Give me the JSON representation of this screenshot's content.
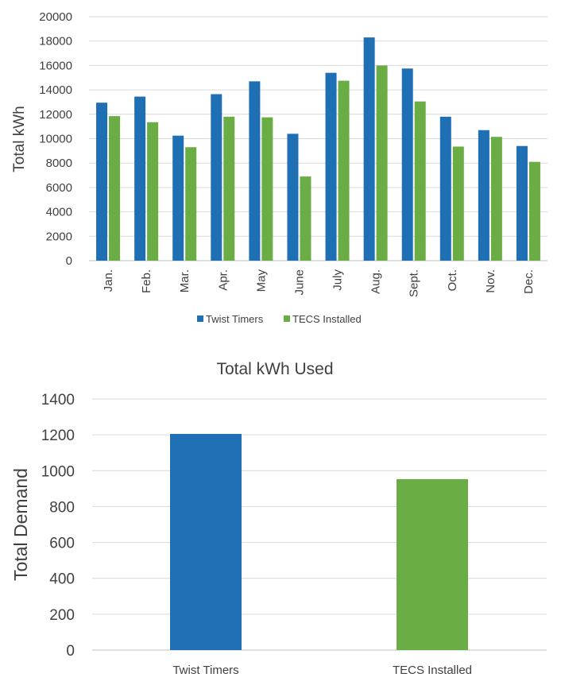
{
  "chart_data": [
    {
      "type": "bar",
      "title": "",
      "xlabel": "",
      "ylabel": "Total kWh",
      "ylim": [
        0,
        20000
      ],
      "yticks": [
        0,
        2000,
        4000,
        6000,
        8000,
        10000,
        12000,
        14000,
        16000,
        18000,
        20000
      ],
      "grid": true,
      "legend_position": "bottom",
      "categories": [
        "Jan.",
        "Feb.",
        "Mar.",
        "Apr.",
        "May",
        "June",
        "July",
        "Aug.",
        "Sept.",
        "Oct.",
        "Nov.",
        "Dec."
      ],
      "series": [
        {
          "name": "Twist Timers",
          "color": "#1f6fb5",
          "values": [
            12950,
            13450,
            10250,
            13650,
            14700,
            10400,
            15400,
            18300,
            15750,
            11800,
            10700,
            9400
          ]
        },
        {
          "name": "TECS Installed",
          "color": "#6aad45",
          "values": [
            11850,
            11350,
            9300,
            11800,
            11750,
            6900,
            14750,
            16000,
            13050,
            9350,
            10150,
            8100
          ]
        }
      ]
    },
    {
      "type": "bar",
      "title": "Total kWh Used",
      "xlabel": "",
      "ylabel": "Total Demand",
      "ylim": [
        0,
        1400
      ],
      "yticks": [
        0,
        200,
        400,
        600,
        800,
        1000,
        1200,
        1400
      ],
      "grid": true,
      "categories": [
        "Twist Timers",
        "TECS Installed"
      ],
      "values": [
        1205,
        953
      ],
      "colors": [
        "#1f6fb5",
        "#6aad45"
      ]
    }
  ]
}
